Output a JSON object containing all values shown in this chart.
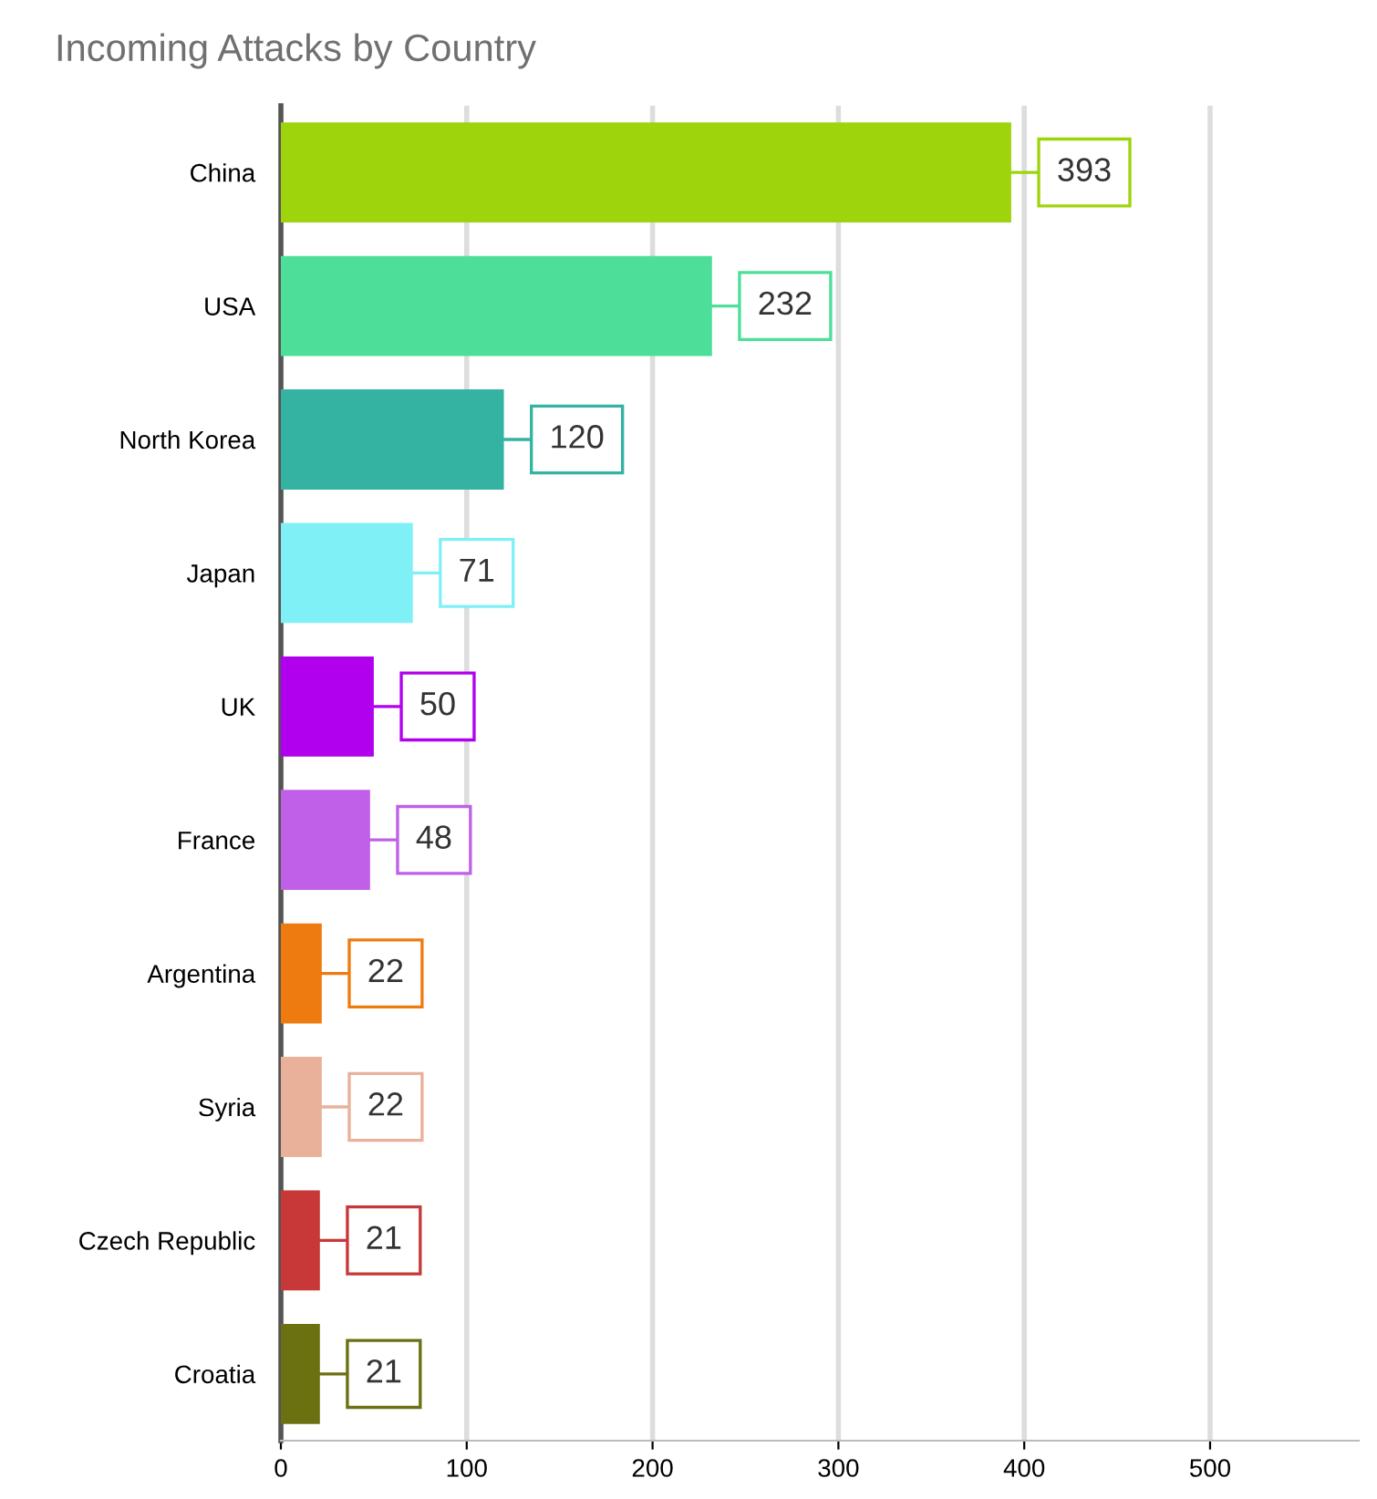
{
  "chart_data": {
    "type": "bar",
    "orientation": "horizontal",
    "title": "Incoming Attacks by Country",
    "categories": [
      "China",
      "USA",
      "North Korea",
      "Japan",
      "UK",
      "France",
      "Argentina",
      "Syria",
      "Czech Republic",
      "Croatia"
    ],
    "values": [
      393,
      232,
      120,
      71,
      50,
      48,
      22,
      22,
      21,
      21
    ],
    "colors": [
      "#9ed40c",
      "#4ddf9a",
      "#34b3a3",
      "#7ff0f5",
      "#b000ee",
      "#c060e8",
      "#ee7b10",
      "#e9b19a",
      "#c83838",
      "#6b7010"
    ],
    "xlim": [
      0,
      580
    ],
    "xticks": [
      0,
      100,
      200,
      300,
      400,
      500
    ],
    "grid": "x",
    "data_labels": true
  }
}
